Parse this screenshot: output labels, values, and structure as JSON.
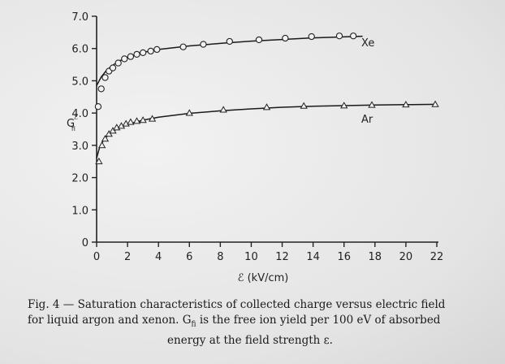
{
  "chart_data": {
    "type": "scatter",
    "xlabel": "ℰ (kV/cm)",
    "ylabel_main": "G",
    "ylabel_sup": "ℰ",
    "ylabel_sub": "fi",
    "xlim": [
      0,
      22
    ],
    "ylim": [
      0,
      7.0
    ],
    "x_ticks": [
      "0",
      "2",
      "4",
      "6",
      "8",
      "10",
      "12",
      "14",
      "16",
      "18",
      "20",
      "22"
    ],
    "y_ticks": [
      "0",
      "1.0",
      "2.0",
      "3.0",
      "4.0",
      "5.0",
      "6.0",
      "7.0"
    ],
    "grid": false,
    "series": [
      {
        "name": "Xe",
        "marker": "circle",
        "points": [
          [
            0.1,
            4.2
          ],
          [
            0.3,
            4.75
          ],
          [
            0.55,
            5.1
          ],
          [
            0.8,
            5.3
          ],
          [
            1.05,
            5.4
          ],
          [
            1.4,
            5.55
          ],
          [
            1.8,
            5.68
          ],
          [
            2.2,
            5.75
          ],
          [
            2.6,
            5.82
          ],
          [
            3.0,
            5.87
          ],
          [
            3.5,
            5.92
          ],
          [
            3.9,
            5.97
          ],
          [
            5.6,
            6.05
          ],
          [
            6.9,
            6.13
          ],
          [
            8.6,
            6.22
          ],
          [
            10.5,
            6.27
          ],
          [
            12.2,
            6.32
          ],
          [
            13.9,
            6.37
          ],
          [
            15.7,
            6.39
          ],
          [
            16.6,
            6.39
          ]
        ],
        "fit": [
          [
            0,
            4.85
          ],
          [
            0.3,
            5.12
          ],
          [
            0.6,
            5.3
          ],
          [
            1.0,
            5.47
          ],
          [
            1.5,
            5.62
          ],
          [
            2.0,
            5.73
          ],
          [
            3.0,
            5.88
          ],
          [
            4.0,
            5.97
          ],
          [
            6.0,
            6.08
          ],
          [
            8.0,
            6.16
          ],
          [
            10.0,
            6.23
          ],
          [
            12.0,
            6.28
          ],
          [
            14.0,
            6.33
          ],
          [
            16.0,
            6.36
          ],
          [
            17.2,
            6.38
          ]
        ]
      },
      {
        "name": "Ar",
        "marker": "triangle",
        "points": [
          [
            0.15,
            2.5
          ],
          [
            0.35,
            3.0
          ],
          [
            0.55,
            3.2
          ],
          [
            0.8,
            3.35
          ],
          [
            1.05,
            3.45
          ],
          [
            1.3,
            3.55
          ],
          [
            1.6,
            3.6
          ],
          [
            1.9,
            3.67
          ],
          [
            2.2,
            3.72
          ],
          [
            2.6,
            3.75
          ],
          [
            3.0,
            3.78
          ],
          [
            3.6,
            3.82
          ],
          [
            6.0,
            4.0
          ],
          [
            8.2,
            4.1
          ],
          [
            11.0,
            4.18
          ],
          [
            13.4,
            4.22
          ],
          [
            16.0,
            4.23
          ],
          [
            17.8,
            4.25
          ],
          [
            20.0,
            4.26
          ],
          [
            21.9,
            4.27
          ]
        ],
        "fit": [
          [
            0,
            2.6
          ],
          [
            0.2,
            2.95
          ],
          [
            0.5,
            3.2
          ],
          [
            1.0,
            3.42
          ],
          [
            1.5,
            3.55
          ],
          [
            2.0,
            3.65
          ],
          [
            3.0,
            3.78
          ],
          [
            4.0,
            3.87
          ],
          [
            6.0,
            3.99
          ],
          [
            8.0,
            4.07
          ],
          [
            10.0,
            4.13
          ],
          [
            12.0,
            4.18
          ],
          [
            14.0,
            4.21
          ],
          [
            16.0,
            4.23
          ],
          [
            18.0,
            4.25
          ],
          [
            20.0,
            4.26
          ],
          [
            22.0,
            4.27
          ]
        ]
      }
    ]
  },
  "caption": {
    "line1": "Fig. 4 — Saturation characteristics of collected charge versus electric field",
    "line2_a": "for liquid argon and xenon. G",
    "line2_sub": "fi",
    "line2_b": " is the free ion yield per 100 eV of absorbed",
    "line3": "energy at the field strength ε."
  }
}
